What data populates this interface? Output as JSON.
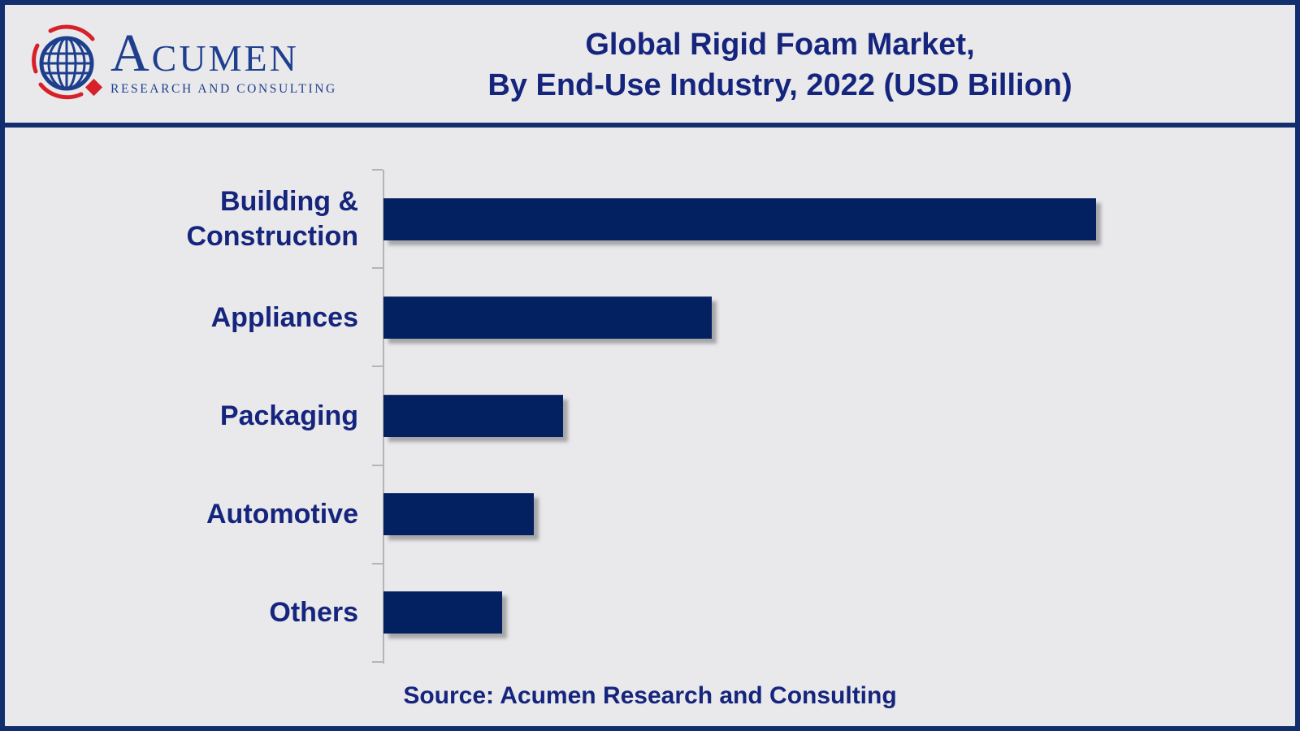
{
  "logo": {
    "initial": "A",
    "rest": "CUMEN",
    "subtitle": "RESEARCH AND CONSULTING",
    "brand_navy": "#1d3f8e",
    "brand_red": "#d6212a"
  },
  "title": {
    "line1": "Global Rigid Foam Market,",
    "line2": "By End-Use Industry, 2022 (USD Billion)"
  },
  "source": {
    "text": "Source: Acumen Research and Consulting"
  },
  "colors": {
    "background": "#e9e9eb",
    "frame_border": "#122e6e",
    "bar_fill": "#032160",
    "text_navy": "#15257d",
    "axis_gray": "#b4b4b6"
  },
  "chart_data": {
    "type": "bar",
    "orientation": "horizontal",
    "title": "Global Rigid Foam Market, By End-Use Industry, 2022 (USD Billion)",
    "categories": [
      "Building & Construction",
      "Appliances",
      "Packaging",
      "Automotive",
      "Others"
    ],
    "labels_display": [
      "Building &\nConstruction",
      "Appliances",
      "Packaging",
      "Automotive",
      "Others"
    ],
    "values_pct_of_max": [
      100,
      46.1,
      25.2,
      21.1,
      16.6
    ],
    "value_axis_label": "USD Billion",
    "value_labels_shown": false,
    "gridlines": false,
    "legend": "none",
    "bar_color": "#032160",
    "source": "Source: Acumen Research and Consulting"
  }
}
